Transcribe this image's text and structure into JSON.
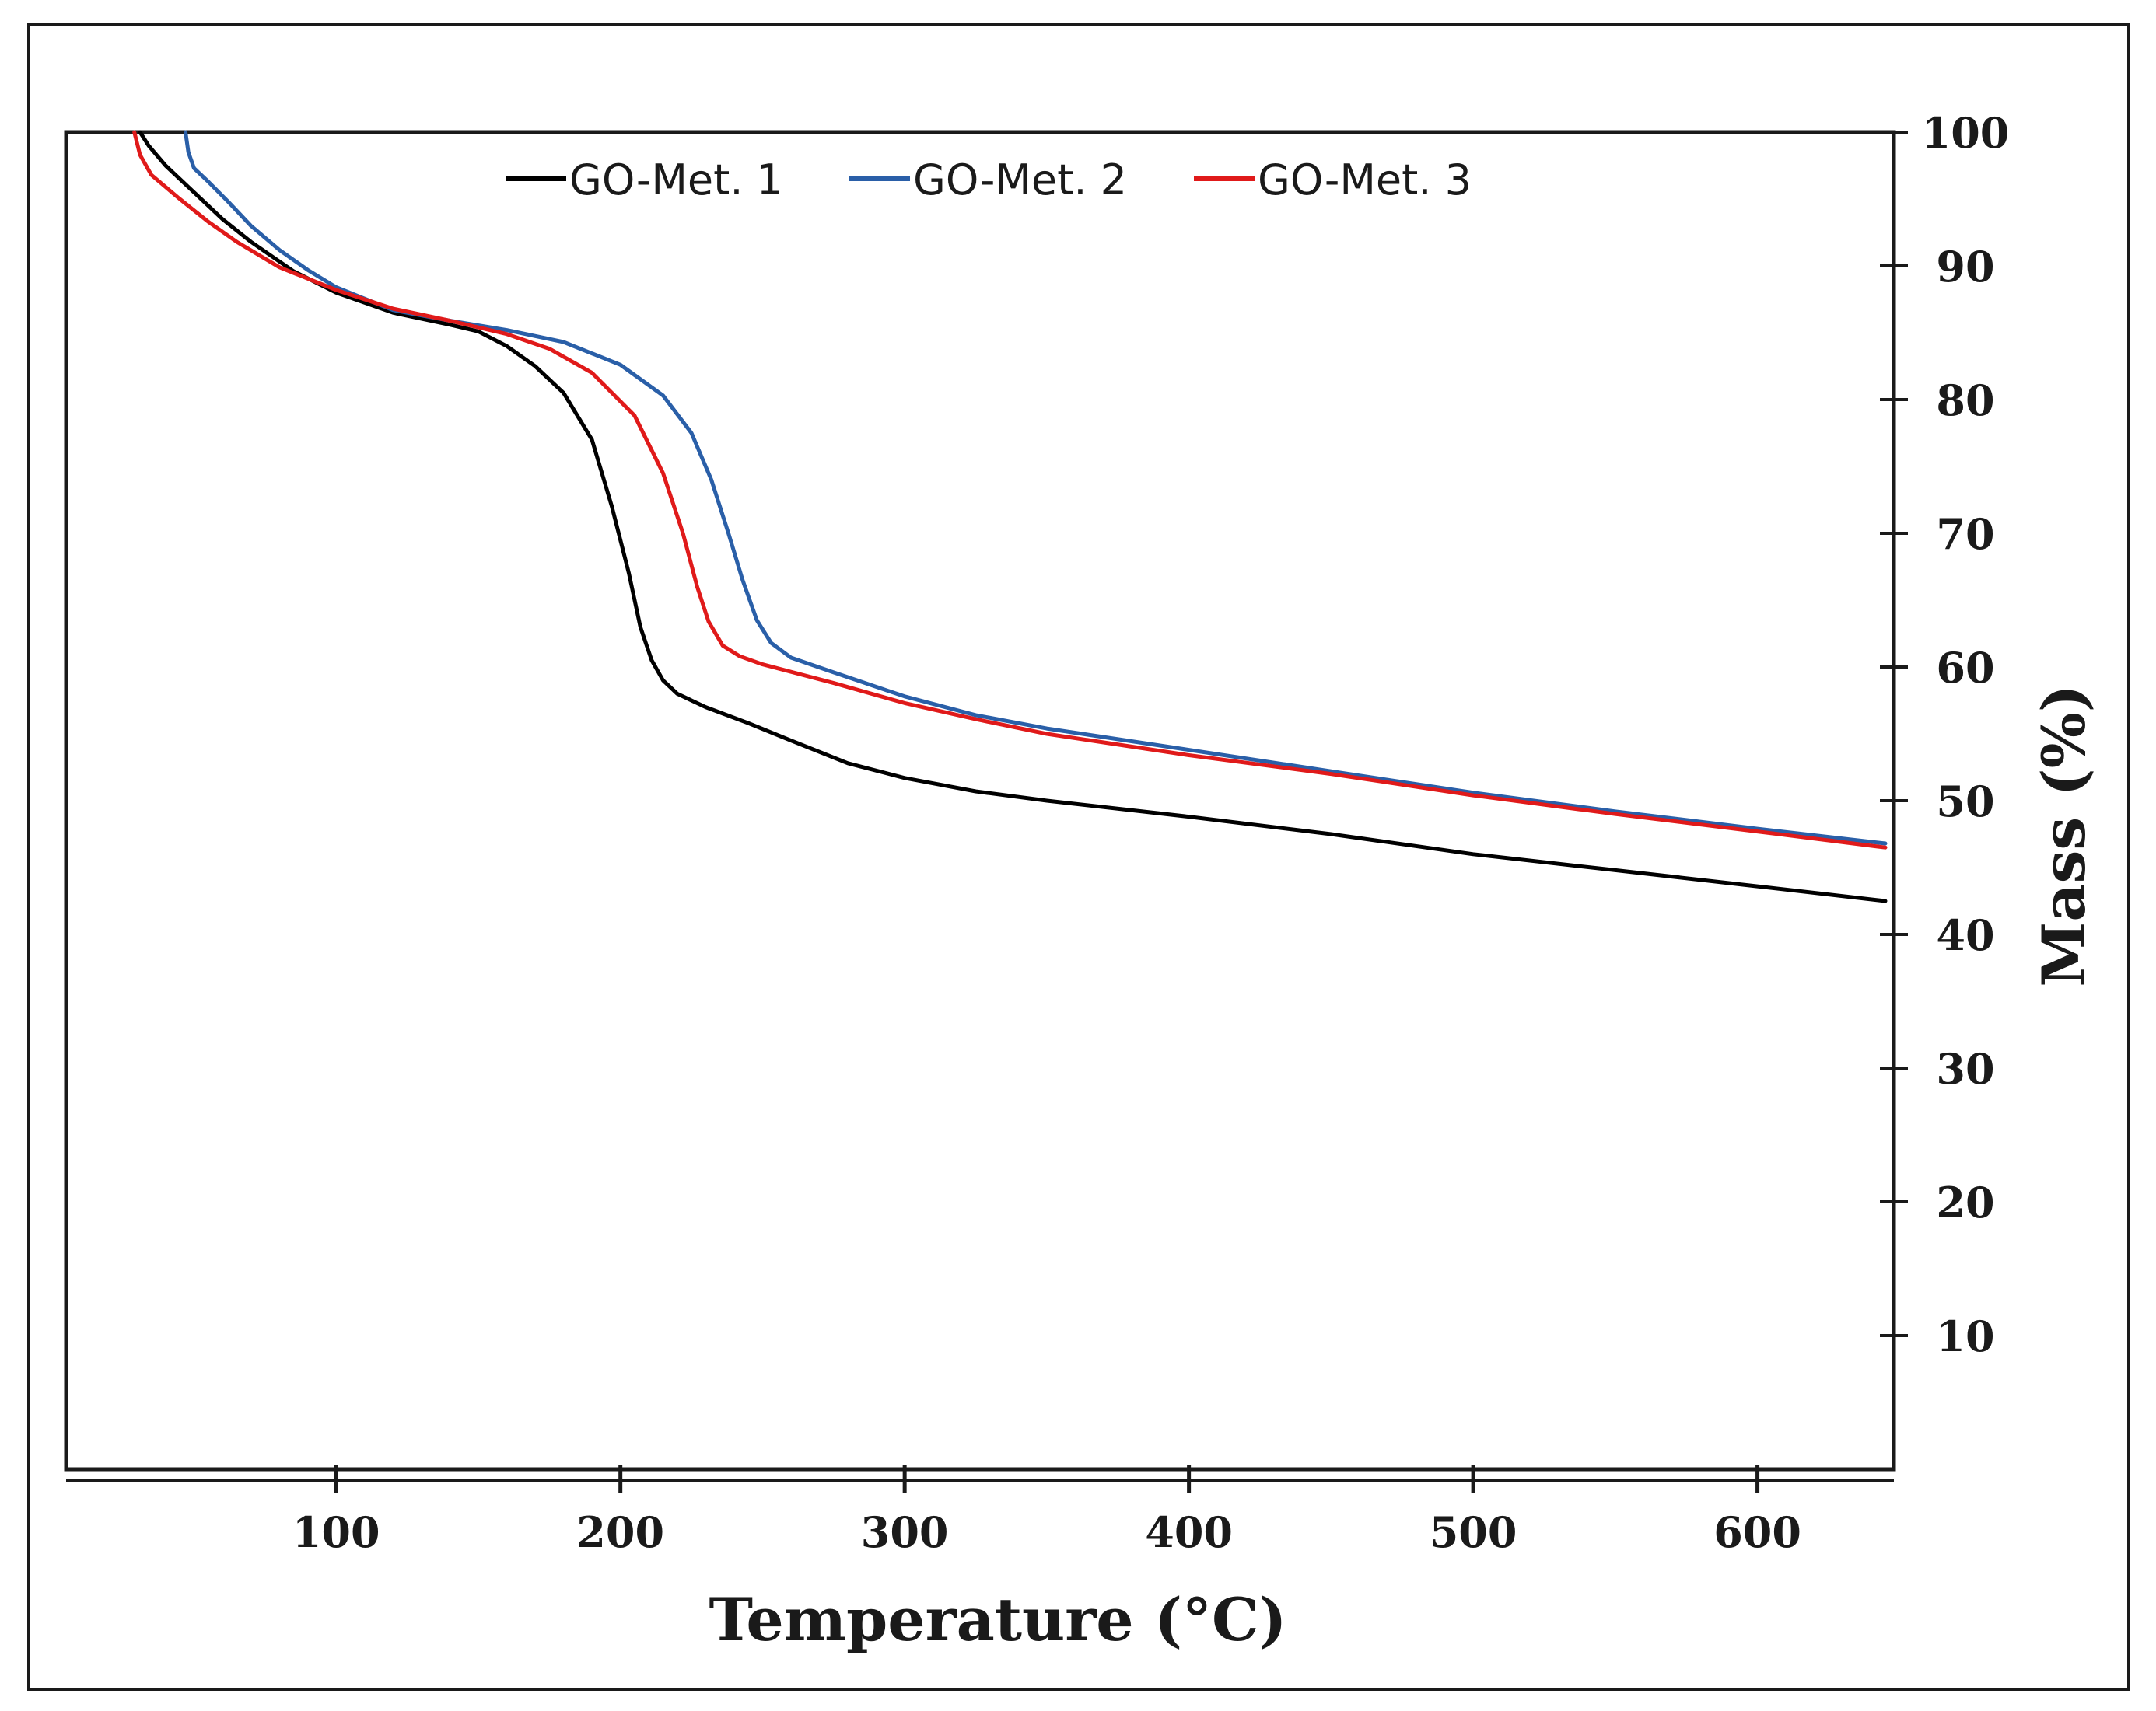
{
  "chart_data": {
    "type": "line",
    "xlabel": "Temperature (°C)",
    "ylabel": "Mass (%)",
    "xlim": [
      5,
      648
    ],
    "ylim": [
      0,
      100
    ],
    "x_ticks": [
      100,
      200,
      300,
      400,
      500,
      600
    ],
    "x_tick_labels": [
      "100",
      "200",
      "300",
      "400",
      "500",
      "600"
    ],
    "y_ticks": [
      10,
      20,
      30,
      40,
      50,
      60,
      70,
      80,
      90,
      100
    ],
    "y_tick_labels": [
      "10",
      "20",
      "30",
      "40",
      "50",
      "60",
      "70",
      "80",
      "90",
      "100"
    ],
    "y_axis_side": "right",
    "legend_position": "top-center",
    "series": [
      {
        "name": "GO-Met. 1",
        "color": "#000000",
        "points": [
          [
            31,
            100
          ],
          [
            34,
            99
          ],
          [
            40,
            97.5
          ],
          [
            50,
            95.5
          ],
          [
            60,
            93.5
          ],
          [
            70,
            91.8
          ],
          [
            85,
            89.6
          ],
          [
            100,
            88
          ],
          [
            120,
            86.5
          ],
          [
            140,
            85.6
          ],
          [
            150,
            85.1
          ],
          [
            160,
            84
          ],
          [
            170,
            82.5
          ],
          [
            180,
            80.5
          ],
          [
            190,
            77
          ],
          [
            197,
            72
          ],
          [
            203,
            67
          ],
          [
            207,
            63
          ],
          [
            211,
            60.5
          ],
          [
            215,
            59
          ],
          [
            220,
            58
          ],
          [
            230,
            57
          ],
          [
            245,
            55.8
          ],
          [
            260,
            54.5
          ],
          [
            280,
            52.8
          ],
          [
            300,
            51.7
          ],
          [
            325,
            50.7
          ],
          [
            350,
            50
          ],
          [
            400,
            48.8
          ],
          [
            450,
            47.5
          ],
          [
            500,
            46
          ],
          [
            550,
            44.8
          ],
          [
            600,
            43.6
          ],
          [
            645,
            42.5
          ]
        ]
      },
      {
        "name": "GO-Met. 2",
        "color": "#2a5fa8",
        "points": [
          [
            47,
            100
          ],
          [
            48,
            98.5
          ],
          [
            50,
            97.3
          ],
          [
            55,
            96.3
          ],
          [
            62,
            94.8
          ],
          [
            70,
            93
          ],
          [
            80,
            91.2
          ],
          [
            90,
            89.7
          ],
          [
            100,
            88.4
          ],
          [
            120,
            86.7
          ],
          [
            140,
            85.9
          ],
          [
            160,
            85.2
          ],
          [
            180,
            84.3
          ],
          [
            200,
            82.6
          ],
          [
            215,
            80.3
          ],
          [
            225,
            77.5
          ],
          [
            232,
            74
          ],
          [
            238,
            70
          ],
          [
            243,
            66.5
          ],
          [
            248,
            63.5
          ],
          [
            253,
            61.8
          ],
          [
            260,
            60.7
          ],
          [
            275,
            59.6
          ],
          [
            300,
            57.8
          ],
          [
            325,
            56.4
          ],
          [
            350,
            55.4
          ],
          [
            400,
            53.8
          ],
          [
            450,
            52.2
          ],
          [
            500,
            50.6
          ],
          [
            550,
            49.2
          ],
          [
            600,
            47.9
          ],
          [
            645,
            46.8
          ]
        ]
      },
      {
        "name": "GO-Met. 3",
        "color": "#e01a1a",
        "points": [
          [
            29,
            100
          ],
          [
            31,
            98.3
          ],
          [
            35,
            96.8
          ],
          [
            45,
            95
          ],
          [
            55,
            93.3
          ],
          [
            65,
            91.8
          ],
          [
            80,
            89.9
          ],
          [
            100,
            88.2
          ],
          [
            120,
            86.8
          ],
          [
            140,
            85.9
          ],
          [
            160,
            84.9
          ],
          [
            175,
            83.8
          ],
          [
            190,
            82
          ],
          [
            205,
            78.8
          ],
          [
            215,
            74.5
          ],
          [
            222,
            70
          ],
          [
            227,
            66
          ],
          [
            231,
            63.4
          ],
          [
            236,
            61.6
          ],
          [
            242,
            60.8
          ],
          [
            250,
            60.2
          ],
          [
            275,
            58.8
          ],
          [
            300,
            57.3
          ],
          [
            325,
            56.1
          ],
          [
            350,
            55
          ],
          [
            400,
            53.4
          ],
          [
            450,
            52
          ],
          [
            500,
            50.4
          ],
          [
            550,
            49
          ],
          [
            600,
            47.7
          ],
          [
            645,
            46.5
          ]
        ]
      }
    ]
  }
}
